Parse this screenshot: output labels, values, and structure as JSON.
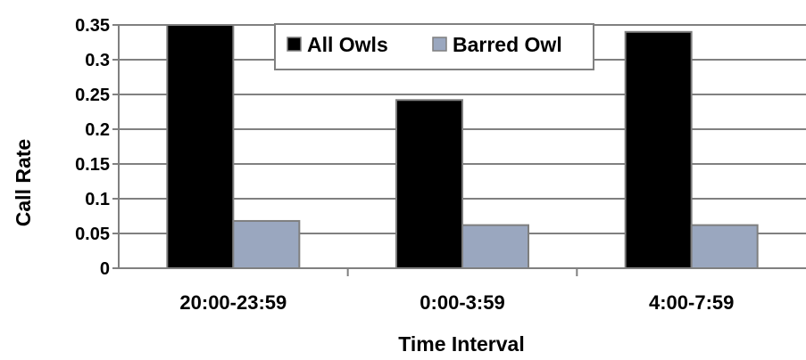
{
  "chart_data": {
    "type": "bar",
    "categories": [
      "20:00-23:59",
      "0:00-3:59",
      "4:00-7:59"
    ],
    "series": [
      {
        "name": "All Owls",
        "values": [
          0.35,
          0.242,
          0.34
        ],
        "color": "#000000"
      },
      {
        "name": "Barred Owl",
        "values": [
          0.068,
          0.062,
          0.062
        ],
        "color": "#9aa7bf"
      }
    ],
    "xlabel": "Time Interval",
    "ylabel": "Call Rate",
    "ylim": [
      0,
      0.35
    ],
    "yticks": [
      "0",
      "0.05",
      "0.1",
      "0.15",
      "0.2",
      "0.25",
      "0.3",
      "0.35"
    ],
    "grid": true,
    "legend_position": "top-center"
  }
}
